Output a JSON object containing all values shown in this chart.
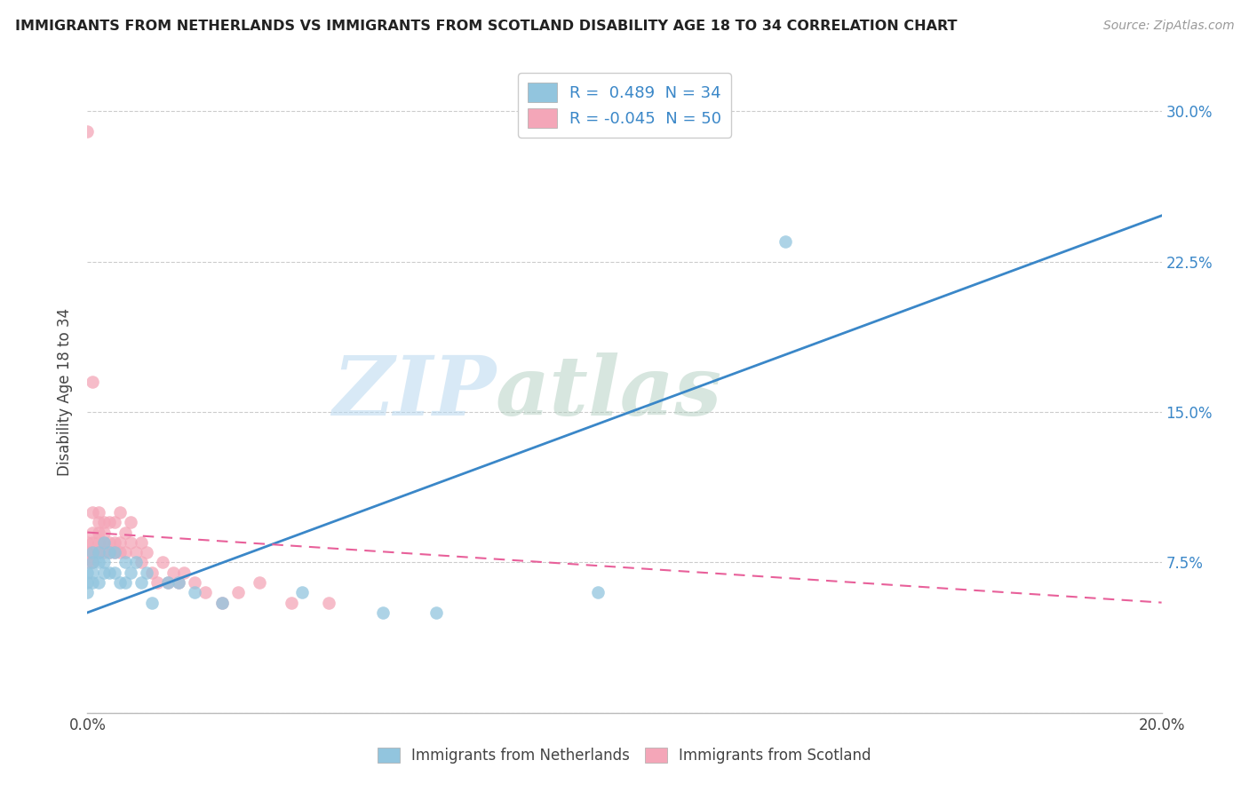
{
  "title": "IMMIGRANTS FROM NETHERLANDS VS IMMIGRANTS FROM SCOTLAND DISABILITY AGE 18 TO 34 CORRELATION CHART",
  "source": "Source: ZipAtlas.com",
  "ylabel": "Disability Age 18 to 34",
  "xlim": [
    0.0,
    0.2
  ],
  "ylim": [
    0.0,
    0.32
  ],
  "xticks": [
    0.0,
    0.05,
    0.1,
    0.15,
    0.2
  ],
  "yticks": [
    0.0,
    0.075,
    0.15,
    0.225,
    0.3
  ],
  "ytick_labels": [
    "",
    "7.5%",
    "15.0%",
    "22.5%",
    "30.0%"
  ],
  "watermark_zip": "ZIP",
  "watermark_atlas": "atlas",
  "color_blue": "#92c5de",
  "color_pink": "#f4a6b8",
  "line_blue": "#3a87c8",
  "line_pink": "#e8609a",
  "netherlands_x": [
    0.0,
    0.0,
    0.0,
    0.001,
    0.001,
    0.001,
    0.001,
    0.002,
    0.002,
    0.002,
    0.003,
    0.003,
    0.003,
    0.004,
    0.004,
    0.005,
    0.005,
    0.006,
    0.007,
    0.007,
    0.008,
    0.009,
    0.01,
    0.011,
    0.012,
    0.015,
    0.017,
    0.02,
    0.025,
    0.04,
    0.055,
    0.065,
    0.095,
    0.13
  ],
  "netherlands_y": [
    0.06,
    0.065,
    0.07,
    0.065,
    0.07,
    0.075,
    0.08,
    0.065,
    0.075,
    0.08,
    0.07,
    0.075,
    0.085,
    0.07,
    0.08,
    0.07,
    0.08,
    0.065,
    0.065,
    0.075,
    0.07,
    0.075,
    0.065,
    0.07,
    0.055,
    0.065,
    0.065,
    0.06,
    0.055,
    0.06,
    0.05,
    0.05,
    0.06,
    0.235
  ],
  "scotland_x": [
    0.0,
    0.0,
    0.0,
    0.001,
    0.001,
    0.001,
    0.001,
    0.001,
    0.002,
    0.002,
    0.002,
    0.002,
    0.002,
    0.003,
    0.003,
    0.003,
    0.003,
    0.004,
    0.004,
    0.004,
    0.005,
    0.005,
    0.005,
    0.006,
    0.006,
    0.006,
    0.007,
    0.007,
    0.008,
    0.008,
    0.009,
    0.01,
    0.01,
    0.011,
    0.012,
    0.013,
    0.014,
    0.015,
    0.016,
    0.017,
    0.018,
    0.02,
    0.022,
    0.025,
    0.028,
    0.032,
    0.038,
    0.045,
    0.0,
    0.001
  ],
  "scotland_y": [
    0.075,
    0.08,
    0.085,
    0.075,
    0.08,
    0.085,
    0.09,
    0.1,
    0.08,
    0.085,
    0.09,
    0.095,
    0.1,
    0.08,
    0.085,
    0.09,
    0.095,
    0.08,
    0.085,
    0.095,
    0.08,
    0.085,
    0.095,
    0.08,
    0.085,
    0.1,
    0.08,
    0.09,
    0.085,
    0.095,
    0.08,
    0.075,
    0.085,
    0.08,
    0.07,
    0.065,
    0.075,
    0.065,
    0.07,
    0.065,
    0.07,
    0.065,
    0.06,
    0.055,
    0.06,
    0.065,
    0.055,
    0.055,
    0.29,
    0.165
  ],
  "nl_line_x0": 0.0,
  "nl_line_y0": 0.05,
  "nl_line_x1": 0.2,
  "nl_line_y1": 0.248,
  "sc_line_x0": 0.0,
  "sc_line_y0": 0.09,
  "sc_line_x1": 0.2,
  "sc_line_y1": 0.055
}
